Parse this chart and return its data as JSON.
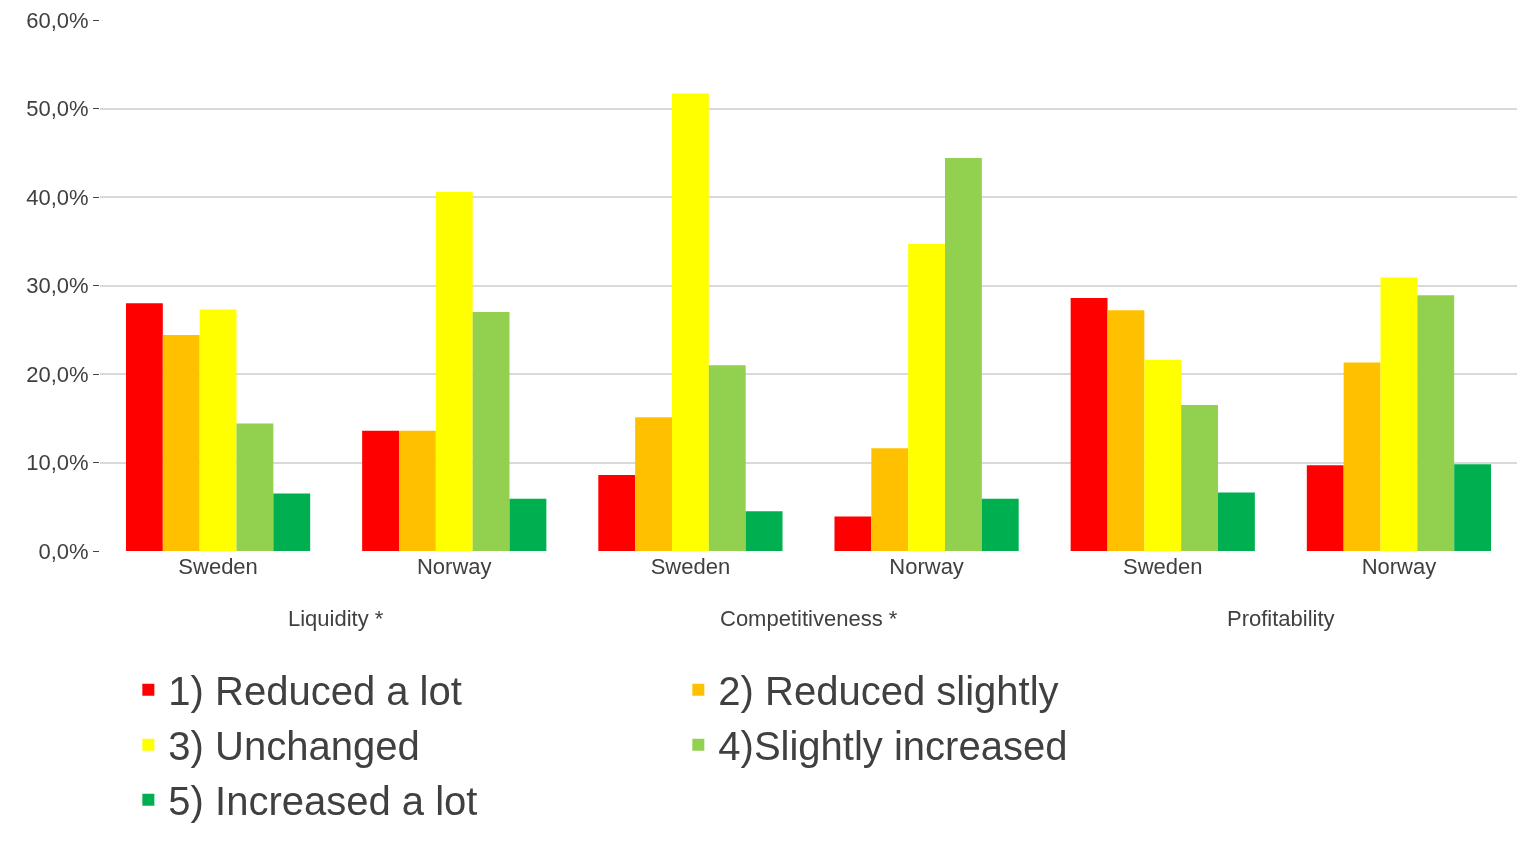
{
  "chart_data": {
    "type": "bar",
    "categories": [
      "Sweden",
      "Norway",
      "Sweden",
      "Norway",
      "Sweden",
      "Norway"
    ],
    "series": [
      {
        "name": "1) Reduced a lot",
        "color": "#ff0000",
        "values": [
          28.0,
          13.6,
          8.6,
          3.9,
          28.6,
          9.7
        ]
      },
      {
        "name": "2) Reduced slightly",
        "color": "#ffc000",
        "values": [
          24.4,
          13.6,
          15.1,
          11.6,
          27.2,
          21.3
        ]
      },
      {
        "name": "3) Unchanged",
        "color": "#ffff00",
        "values": [
          27.3,
          40.6,
          51.7,
          34.7,
          21.6,
          30.9
        ]
      },
      {
        "name": "4)Slightly increased",
        "color": "#92d050",
        "values": [
          14.4,
          27.0,
          21.0,
          44.4,
          16.5,
          28.9
        ]
      },
      {
        "name": "5) Increased a lot",
        "color": "#00b050",
        "values": [
          6.5,
          5.9,
          4.5,
          5.9,
          6.6,
          9.8
        ]
      }
    ],
    "annotations": [
      "Liquidity *",
      "Competitiveness *",
      "Profitability"
    ],
    "ylim": [
      0,
      60
    ],
    "yticks": [
      {
        "value": 0,
        "label": "0,0%"
      },
      {
        "value": 10,
        "label": "10,0%"
      },
      {
        "value": 20,
        "label": "20,0%"
      },
      {
        "value": 30,
        "label": "30,0%"
      },
      {
        "value": 40,
        "label": "40,0%"
      },
      {
        "value": 50,
        "label": "50,0%"
      },
      {
        "value": 60,
        "label": "60,0%"
      }
    ],
    "grid": "y",
    "legend": "bottom"
  }
}
